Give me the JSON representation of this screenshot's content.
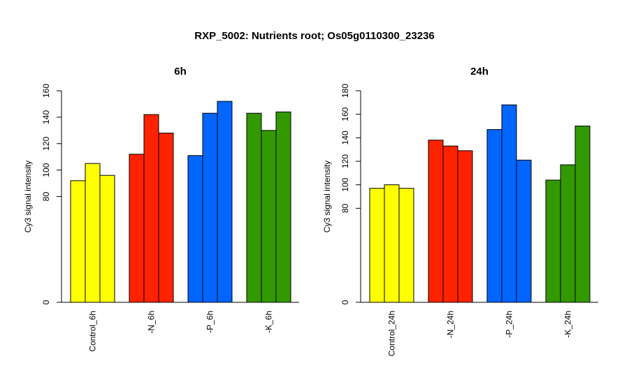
{
  "title": "RXP_5002: Nutrients root; Os05g0110300_23236",
  "chart_data": [
    {
      "type": "bar",
      "title": "6h",
      "ylabel": "Cy3 signal intensity",
      "xlabel": "",
      "categories": [
        "Control_6h",
        "-N_6h",
        "-P_6h",
        "-K_6h"
      ],
      "colors": [
        "#ffff00",
        "#ff2200",
        "#0066ff",
        "#339900"
      ],
      "values": [
        [
          92,
          105,
          96
        ],
        [
          112,
          142,
          128
        ],
        [
          111,
          143,
          152
        ],
        [
          143,
          130,
          144
        ]
      ],
      "ylim": [
        0,
        160
      ],
      "yticks": [
        0,
        80,
        100,
        120,
        140,
        160
      ],
      "ytick_labels": [
        "0",
        "80",
        "100",
        "120",
        "140",
        "160"
      ]
    },
    {
      "type": "bar",
      "title": "24h",
      "ylabel": "Cy3 signal intensity",
      "xlabel": "",
      "categories": [
        "Control_24h",
        "-N_24h",
        "-P_24h",
        "-K_24h"
      ],
      "colors": [
        "#ffff00",
        "#ff2200",
        "#0066ff",
        "#339900"
      ],
      "values": [
        [
          97,
          100,
          97
        ],
        [
          138,
          133,
          129
        ],
        [
          147,
          168,
          121
        ],
        [
          104,
          117,
          150
        ]
      ],
      "ylim": [
        0,
        180
      ],
      "yticks": [
        0,
        80,
        100,
        120,
        140,
        160,
        180
      ],
      "ytick_labels": [
        "0",
        "80",
        "100",
        "120",
        "140",
        "160",
        "180"
      ]
    }
  ]
}
